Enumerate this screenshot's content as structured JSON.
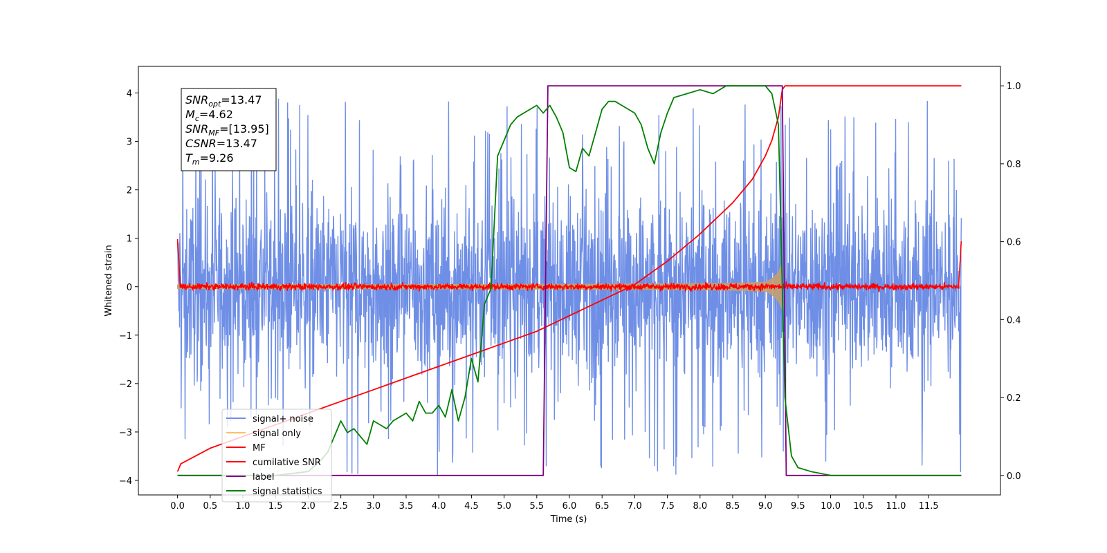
{
  "chart_data": {
    "type": "line",
    "title": "",
    "xlabel": "Time (s)",
    "ylabel": "Whitened strain",
    "xlim": [
      -0.6,
      12.6
    ],
    "ylim": [
      -4.3,
      4.55
    ],
    "y2lim": [
      -0.05,
      1.05
    ],
    "x_ticks": [
      "0.0",
      "0.5",
      "1.0",
      "1.5",
      "2.0",
      "2.5",
      "3.0",
      "3.5",
      "4.0",
      "4.5",
      "5.0",
      "5.5",
      "6.0",
      "6.5",
      "7.0",
      "7.5",
      "8.0",
      "8.5",
      "9.0",
      "9.5",
      "10.0",
      "10.5",
      "11.0",
      "11.5"
    ],
    "y_ticks": [
      "4",
      "3",
      "2",
      "1",
      "0",
      "−1",
      "−2",
      "−3",
      "−4"
    ],
    "y2_ticks": [
      "1.0",
      "0.8",
      "0.6",
      "0.4",
      "0.2",
      "0.0"
    ],
    "grid": false,
    "legend_placement": "lower-left",
    "annotation": [
      {
        "sym": "SNR",
        "sub": "opt",
        "val": "=13.47"
      },
      {
        "sym": "M",
        "sub": "c",
        "val": "=4.62"
      },
      {
        "sym": "SNR",
        "sub": "MF",
        "val": "=[13.95]"
      },
      {
        "sym": "CSNR",
        "sub": "",
        "val": "=13.47"
      },
      {
        "sym": "T",
        "sub": "m",
        "val": "=9.26"
      }
    ],
    "series": [
      {
        "name": "signal+ noise",
        "color": "#6f8fe6",
        "axis": "left",
        "style": "noise",
        "x_range": [
          0,
          12
        ],
        "typical_amplitude": 1.5,
        "extreme_range": [
          -3.9,
          4.15
        ]
      },
      {
        "name": "signal only",
        "color": "#c4a070",
        "axis": "left",
        "style": "chirp",
        "x_range": [
          0,
          9.26
        ],
        "envelope_start": 0.04,
        "envelope_peak": 0.9,
        "merger_time": 9.26
      },
      {
        "name": "MF",
        "color": "#ff0000",
        "axis": "left",
        "style": "mf",
        "x_range": [
          0,
          12
        ],
        "start_value": 1.0,
        "end_value": 0.9,
        "noise_amplitude": 0.1
      },
      {
        "name": "cumilative SNR",
        "color": "#ff0000",
        "axis": "right",
        "x": [
          0,
          0.05,
          0.5,
          1,
          1.5,
          2,
          2.5,
          3,
          3.5,
          4,
          4.5,
          5,
          5.5,
          6,
          6.5,
          7,
          7.5,
          8,
          8.5,
          8.8,
          9.0,
          9.1,
          9.2,
          9.26,
          9.3,
          10,
          11,
          12
        ],
        "y": [
          0.01,
          0.03,
          0.07,
          0.1,
          0.13,
          0.16,
          0.19,
          0.22,
          0.25,
          0.28,
          0.31,
          0.34,
          0.37,
          0.41,
          0.45,
          0.49,
          0.55,
          0.62,
          0.7,
          0.76,
          0.82,
          0.86,
          0.92,
          0.99,
          1.0,
          1.0,
          1.0,
          1.0
        ]
      },
      {
        "name": "label",
        "color": "#800080",
        "axis": "right",
        "x": [
          0,
          5.6,
          5.67,
          9.26,
          9.32,
          12
        ],
        "y": [
          0,
          0,
          1,
          1,
          0,
          0
        ]
      },
      {
        "name": "signal statistics",
        "color": "#008000",
        "axis": "right",
        "x": [
          0,
          0.5,
          1,
          1.5,
          2,
          2.2,
          2.3,
          2.4,
          2.5,
          2.6,
          2.7,
          2.8,
          2.9,
          3.0,
          3.1,
          3.2,
          3.3,
          3.4,
          3.5,
          3.6,
          3.7,
          3.8,
          3.9,
          4.0,
          4.1,
          4.2,
          4.3,
          4.4,
          4.5,
          4.6,
          4.7,
          4.8,
          4.9,
          5.0,
          5.1,
          5.2,
          5.3,
          5.4,
          5.5,
          5.6,
          5.7,
          5.8,
          5.9,
          6.0,
          6.1,
          6.2,
          6.3,
          6.4,
          6.5,
          6.6,
          6.7,
          6.8,
          6.9,
          7.0,
          7.1,
          7.2,
          7.3,
          7.4,
          7.5,
          7.6,
          7.8,
          8.0,
          8.2,
          8.4,
          8.6,
          8.8,
          9.0,
          9.1,
          9.2,
          9.3,
          9.4,
          9.5,
          9.7,
          10.0,
          10.5,
          11,
          11.5,
          12
        ],
        "y": [
          0.0,
          0.0,
          0.0,
          0.0,
          0.01,
          0.04,
          0.06,
          0.1,
          0.14,
          0.11,
          0.12,
          0.1,
          0.08,
          0.14,
          0.13,
          0.12,
          0.14,
          0.15,
          0.16,
          0.14,
          0.19,
          0.16,
          0.16,
          0.18,
          0.15,
          0.22,
          0.14,
          0.2,
          0.3,
          0.24,
          0.44,
          0.48,
          0.82,
          0.86,
          0.9,
          0.92,
          0.93,
          0.94,
          0.95,
          0.93,
          0.95,
          0.92,
          0.88,
          0.79,
          0.78,
          0.84,
          0.82,
          0.88,
          0.94,
          0.96,
          0.96,
          0.95,
          0.94,
          0.93,
          0.9,
          0.84,
          0.8,
          0.88,
          0.93,
          0.97,
          0.98,
          0.99,
          0.98,
          1.0,
          1.0,
          1.0,
          1.0,
          0.98,
          0.9,
          0.2,
          0.05,
          0.02,
          0.01,
          0.0,
          0.0,
          0.0,
          0.0,
          0.0
        ]
      }
    ]
  }
}
